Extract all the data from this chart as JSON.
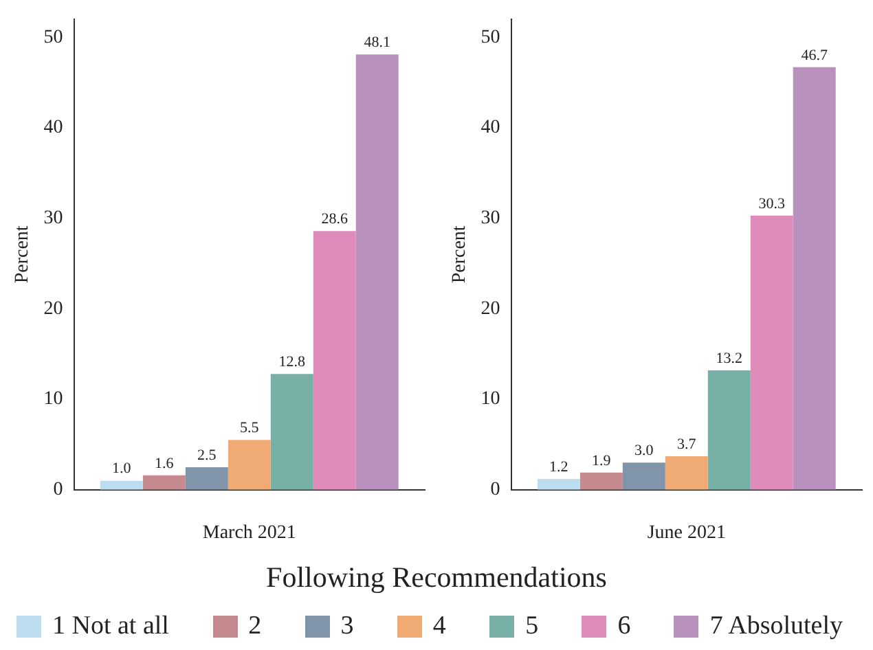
{
  "chart_data": [
    {
      "type": "bar",
      "categories": [
        null
      ],
      "xlabel": "March 2021",
      "ylabel": "Percent",
      "annotations": [
        "Following Recommendations"
      ],
      "legend": "bottom",
      "ylim": [
        0,
        52
      ],
      "yticks": [
        0,
        10,
        20,
        30,
        40,
        50
      ],
      "grid": false,
      "series": [
        {
          "name": "1 Not at all",
          "color": "#bcdcf0",
          "values": [
            1.0
          ],
          "value_labels": [
            "1.0"
          ]
        },
        {
          "name": "2",
          "color": "#c48a8e",
          "values": [
            1.6
          ],
          "value_labels": [
            "1.6"
          ]
        },
        {
          "name": "3",
          "color": "#8095aa",
          "values": [
            2.5
          ],
          "value_labels": [
            "2.5"
          ]
        },
        {
          "name": "4",
          "color": "#f0aa74",
          "values": [
            5.5
          ],
          "value_labels": [
            "5.5"
          ]
        },
        {
          "name": "5",
          "color": "#78b0a8",
          "values": [
            12.8
          ],
          "value_labels": [
            "12.8"
          ]
        },
        {
          "name": "6",
          "color": "#e08cba",
          "values": [
            28.6
          ],
          "value_labels": [
            "28.6"
          ]
        },
        {
          "name": "7 Absolutely",
          "color": "#b892bc",
          "values": [
            48.1
          ],
          "value_labels": [
            "48.1"
          ]
        }
      ]
    },
    {
      "type": "bar",
      "categories": [
        null
      ],
      "xlabel": "June 2021",
      "ylabel": "Percent",
      "ylim": [
        0,
        52
      ],
      "yticks": [
        0,
        10,
        20,
        30,
        40,
        50
      ],
      "grid": false,
      "series": [
        {
          "color": "#bcdcf0",
          "values": [
            1.2
          ],
          "value_labels": [
            "1.2"
          ]
        },
        {
          "color": "#c48a8e",
          "values": [
            1.9
          ],
          "value_labels": [
            "1.9"
          ]
        },
        {
          "color": "#8095aa",
          "values": [
            3.0
          ],
          "value_labels": [
            "3.0"
          ]
        },
        {
          "color": "#f0aa74",
          "values": [
            3.7
          ],
          "value_labels": [
            "3.7"
          ]
        },
        {
          "color": "#78b0a8",
          "values": [
            13.2
          ],
          "value_labels": [
            "13.2"
          ]
        },
        {
          "color": "#e08cba",
          "values": [
            30.3
          ],
          "value_labels": [
            "30.3"
          ]
        },
        {
          "color": "#b892bc",
          "values": [
            46.7
          ],
          "value_labels": [
            "46.7"
          ]
        }
      ]
    }
  ]
}
